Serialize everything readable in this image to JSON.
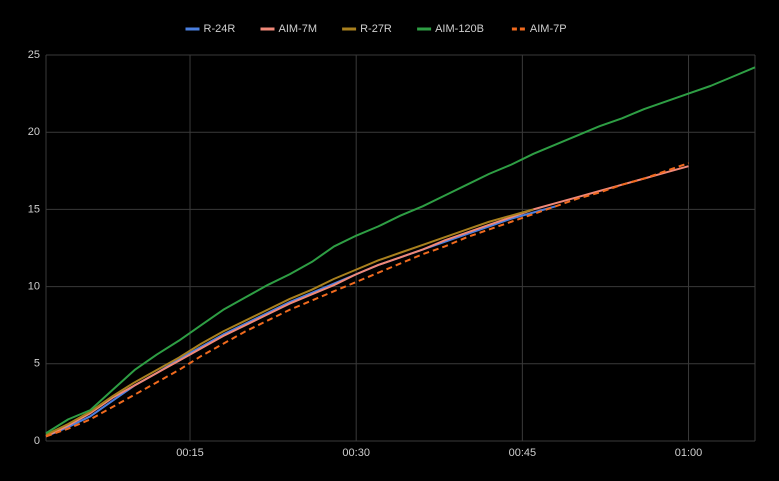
{
  "chart_data": {
    "type": "line",
    "x": [
      2,
      4,
      6,
      8,
      10,
      12,
      14,
      16,
      18,
      20,
      22,
      24,
      26,
      28,
      30,
      32,
      34,
      36,
      38,
      40,
      42,
      44,
      46,
      48,
      50,
      52,
      54,
      56,
      58,
      60,
      62,
      64,
      66
    ],
    "series": [
      {
        "name": "R-24R",
        "color": "#4a7fe0",
        "dashed": false,
        "values": [
          0.3,
          0.9,
          1.6,
          2.6,
          3.6,
          4.4,
          5.3,
          6.1,
          6.9,
          7.6,
          8.3,
          9.0,
          9.6,
          10.2,
          10.8,
          11.4,
          11.9,
          12.4,
          12.9,
          13.4,
          13.9,
          14.4,
          14.8,
          15.2,
          null,
          null,
          null,
          null,
          null,
          null,
          null,
          null,
          null
        ]
      },
      {
        "name": "AIM-7M",
        "color": "#f08878",
        "dashed": false,
        "values": [
          0.3,
          1.0,
          1.8,
          2.8,
          3.6,
          4.4,
          5.2,
          6.0,
          6.8,
          7.5,
          8.2,
          8.9,
          9.5,
          10.1,
          10.8,
          11.4,
          11.9,
          12.4,
          13.0,
          13.5,
          14.0,
          14.5,
          15.0,
          15.4,
          15.8,
          16.2,
          16.6,
          17.0,
          17.4,
          17.8,
          null,
          null,
          null
        ]
      },
      {
        "name": "R-27R",
        "color": "#a8801e",
        "dashed": false,
        "values": [
          0.4,
          1.1,
          1.9,
          2.9,
          3.8,
          4.6,
          5.4,
          6.3,
          7.1,
          7.8,
          8.5,
          9.2,
          9.8,
          10.5,
          11.1,
          11.7,
          12.2,
          12.7,
          13.2,
          13.7,
          14.2,
          14.6,
          15.0,
          null,
          null,
          null,
          null,
          null,
          null,
          null,
          null,
          null,
          null
        ]
      },
      {
        "name": "AIM-120B",
        "color": "#2e9e44",
        "dashed": false,
        "values": [
          0.5,
          1.4,
          2.0,
          3.3,
          4.6,
          5.6,
          6.5,
          7.5,
          8.5,
          9.3,
          10.1,
          10.8,
          11.6,
          12.6,
          13.3,
          13.9,
          14.6,
          15.2,
          15.9,
          16.6,
          17.3,
          17.9,
          18.6,
          19.2,
          19.8,
          20.4,
          20.9,
          21.5,
          22.0,
          22.5,
          23.0,
          23.6,
          24.2
        ]
      },
      {
        "name": "AIM-7P",
        "color": "#f06a1e",
        "dashed": true,
        "values": [
          0.3,
          0.8,
          1.4,
          2.2,
          3.0,
          3.8,
          4.6,
          5.5,
          6.3,
          7.1,
          7.8,
          8.5,
          9.1,
          9.7,
          10.3,
          10.9,
          11.5,
          12.1,
          12.6,
          13.2,
          13.7,
          14.2,
          14.7,
          15.2,
          15.7,
          16.1,
          16.6,
          17.0,
          17.5,
          18.0,
          null,
          null,
          null
        ]
      }
    ],
    "xlim": [
      2,
      66
    ],
    "xticks": [
      {
        "value": 15,
        "label": "00:15"
      },
      {
        "value": 30,
        "label": "00:30"
      },
      {
        "value": 45,
        "label": "00:45"
      },
      {
        "value": 60,
        "label": "01:00"
      }
    ],
    "ylim": [
      0,
      25
    ],
    "yticks": [
      0,
      5,
      10,
      15,
      20,
      25
    ],
    "grid": true,
    "legend": "top"
  }
}
